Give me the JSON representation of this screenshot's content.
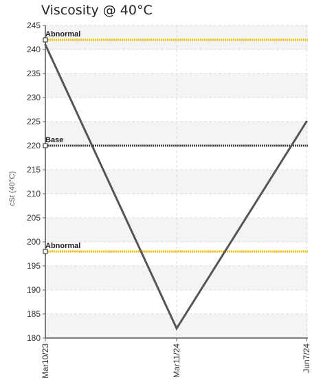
{
  "title": "Viscosity @ 40°C",
  "chart_data": {
    "type": "line",
    "title": "Viscosity @ 40°C",
    "xlabel": "",
    "ylabel": "cSt (40°C)",
    "categories": [
      "Mar10/23",
      "Mar11/24",
      "Jun7/24"
    ],
    "series": [
      {
        "name": "",
        "values": [
          241,
          182,
          225
        ],
        "color": "#555555"
      }
    ],
    "reference_lines": [
      {
        "label": "Abnormal",
        "value": 242,
        "color": "#f2c200",
        "style": "dotted"
      },
      {
        "label": "Base",
        "value": 220,
        "color": "#444444",
        "style": "dotted"
      },
      {
        "label": "Abnormal",
        "value": 198,
        "color": "#f2c200",
        "style": "dotted"
      }
    ],
    "ylim": [
      180,
      245
    ],
    "yticks": [
      180,
      185,
      190,
      195,
      200,
      205,
      210,
      215,
      220,
      225,
      230,
      235,
      240,
      245
    ],
    "grid": true
  }
}
